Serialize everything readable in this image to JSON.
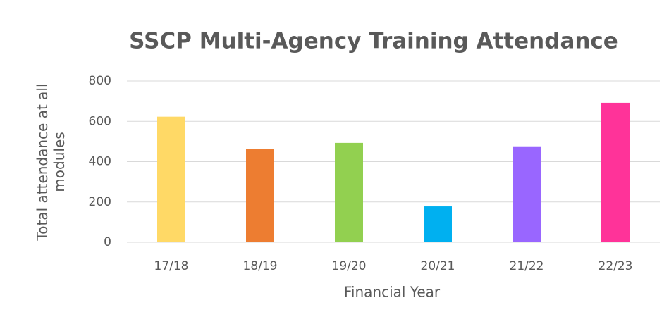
{
  "chart_data": {
    "type": "bar",
    "title": "SSCP Multi-Agency Training Attendance",
    "x_label": "Financial Year",
    "y_label": "Total attendance at all modules",
    "categories": [
      "17/18",
      "18/19",
      "19/20",
      "20/21",
      "21/22",
      "22/23"
    ],
    "values": [
      623,
      462,
      493,
      178,
      476,
      692
    ],
    "colors": [
      "#ffd966",
      "#ed7d31",
      "#92d050",
      "#00b0f0",
      "#9966ff",
      "#ff3399"
    ],
    "ylim": [
      0,
      800
    ],
    "yticks": [
      0,
      200,
      400,
      600,
      800
    ],
    "grid": true
  }
}
